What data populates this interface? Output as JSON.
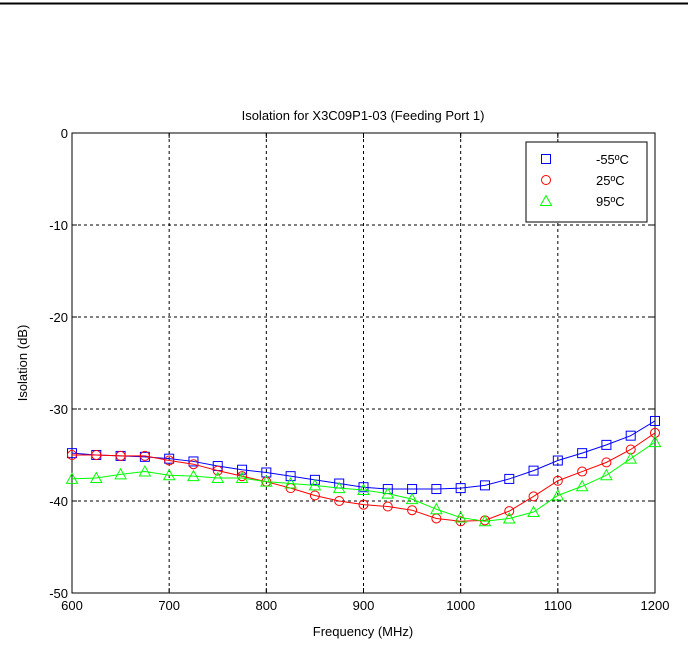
{
  "chart_data": {
    "type": "line",
    "title": "Isolation for X3C09P1-03 (Feeding Port 1)",
    "xlabel": "Frequency (MHz)",
    "ylabel": "Isolation (dB)",
    "xlim": [
      600,
      1200
    ],
    "ylim": [
      -50,
      0
    ],
    "xticks": [
      600,
      700,
      800,
      900,
      1000,
      1100,
      1200
    ],
    "yticks": [
      0,
      -10,
      -20,
      -30,
      -40,
      -50
    ],
    "grid": true,
    "legend_position": "top-right",
    "x": [
      600,
      625,
      650,
      675,
      700,
      725,
      750,
      775,
      800,
      825,
      850,
      875,
      900,
      925,
      950,
      975,
      1000,
      1025,
      1050,
      1075,
      1100,
      1125,
      1150,
      1175,
      1200
    ],
    "series": [
      {
        "name": "-55ºC",
        "color": "#0000ff",
        "marker": "square",
        "values": [
          -34.8,
          -35.0,
          -35.1,
          -35.2,
          -35.4,
          -35.7,
          -36.2,
          -36.6,
          -36.9,
          -37.3,
          -37.7,
          -38.1,
          -38.5,
          -38.7,
          -38.7,
          -38.7,
          -38.6,
          -38.3,
          -37.6,
          -36.7,
          -35.6,
          -34.8,
          -33.9,
          -32.9,
          -31.3
        ]
      },
      {
        "name": "25ºC",
        "color": "#ff0000",
        "marker": "circle",
        "values": [
          -35.0,
          -35.0,
          -35.1,
          -35.1,
          -35.6,
          -36.0,
          -36.7,
          -37.3,
          -37.9,
          -38.6,
          -39.4,
          -40.0,
          -40.4,
          -40.6,
          -41.0,
          -41.9,
          -42.2,
          -42.1,
          -41.1,
          -39.5,
          -37.8,
          -36.8,
          -35.8,
          -34.4,
          -32.6
        ]
      },
      {
        "name": "95ºC",
        "color": "#00ff00",
        "marker": "triangle",
        "values": [
          -37.6,
          -37.5,
          -37.1,
          -36.8,
          -37.2,
          -37.3,
          -37.5,
          -37.5,
          -37.9,
          -38.1,
          -38.3,
          -38.6,
          -38.8,
          -39.2,
          -39.8,
          -40.9,
          -41.8,
          -42.2,
          -41.9,
          -41.2,
          -39.4,
          -38.4,
          -37.2,
          -35.4,
          -33.6
        ]
      }
    ]
  }
}
